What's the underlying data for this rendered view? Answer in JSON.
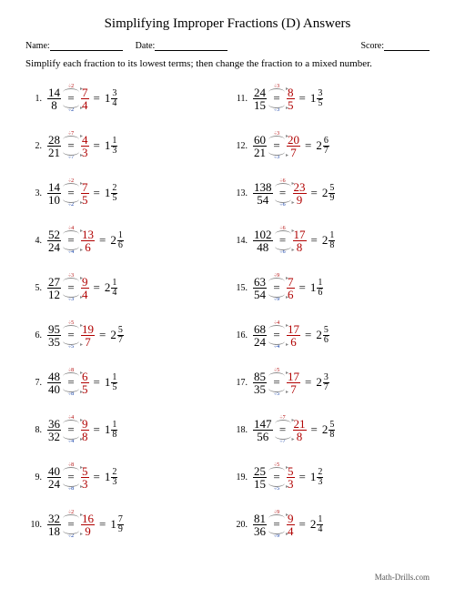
{
  "title": "Simplifying Improper Fractions (D) Answers",
  "name_label": "Name:",
  "date_label": "Date:",
  "score_label": "Score:",
  "instruction": "Simplify each fraction to its lowest terms; then change the fraction to a mixed number.",
  "footer": "Math-Drills.com",
  "colors": {
    "divisor_top": "#b00000",
    "divisor_bot": "#0030a0",
    "simplified": "#b00000",
    "text": "#000000",
    "bg": "#ffffff"
  },
  "problems": [
    {
      "n": "1.",
      "num": "14",
      "den": "8",
      "div": "2",
      "snum": "7",
      "sden": "4",
      "whole": "1",
      "mnum": "3",
      "mden": "4"
    },
    {
      "n": "2.",
      "num": "28",
      "den": "21",
      "div": "7",
      "snum": "4",
      "sden": "3",
      "whole": "1",
      "mnum": "1",
      "mden": "3"
    },
    {
      "n": "3.",
      "num": "14",
      "den": "10",
      "div": "2",
      "snum": "7",
      "sden": "5",
      "whole": "1",
      "mnum": "2",
      "mden": "5"
    },
    {
      "n": "4.",
      "num": "52",
      "den": "24",
      "div": "4",
      "snum": "13",
      "sden": "6",
      "whole": "2",
      "mnum": "1",
      "mden": "6"
    },
    {
      "n": "5.",
      "num": "27",
      "den": "12",
      "div": "3",
      "snum": "9",
      "sden": "4",
      "whole": "2",
      "mnum": "1",
      "mden": "4"
    },
    {
      "n": "6.",
      "num": "95",
      "den": "35",
      "div": "5",
      "snum": "19",
      "sden": "7",
      "whole": "2",
      "mnum": "5",
      "mden": "7"
    },
    {
      "n": "7.",
      "num": "48",
      "den": "40",
      "div": "8",
      "snum": "6",
      "sden": "5",
      "whole": "1",
      "mnum": "1",
      "mden": "5"
    },
    {
      "n": "8.",
      "num": "36",
      "den": "32",
      "div": "4",
      "snum": "9",
      "sden": "8",
      "whole": "1",
      "mnum": "1",
      "mden": "8"
    },
    {
      "n": "9.",
      "num": "40",
      "den": "24",
      "div": "8",
      "snum": "5",
      "sden": "3",
      "whole": "1",
      "mnum": "2",
      "mden": "3"
    },
    {
      "n": "10.",
      "num": "32",
      "den": "18",
      "div": "2",
      "snum": "16",
      "sden": "9",
      "whole": "1",
      "mnum": "7",
      "mden": "9"
    },
    {
      "n": "11.",
      "num": "24",
      "den": "15",
      "div": "3",
      "snum": "8",
      "sden": "5",
      "whole": "1",
      "mnum": "3",
      "mden": "5"
    },
    {
      "n": "12.",
      "num": "60",
      "den": "21",
      "div": "3",
      "snum": "20",
      "sden": "7",
      "whole": "2",
      "mnum": "6",
      "mden": "7"
    },
    {
      "n": "13.",
      "num": "138",
      "den": "54",
      "div": "6",
      "snum": "23",
      "sden": "9",
      "whole": "2",
      "mnum": "5",
      "mden": "9"
    },
    {
      "n": "14.",
      "num": "102",
      "den": "48",
      "div": "6",
      "snum": "17",
      "sden": "8",
      "whole": "2",
      "mnum": "1",
      "mden": "8"
    },
    {
      "n": "15.",
      "num": "63",
      "den": "54",
      "div": "9",
      "snum": "7",
      "sden": "6",
      "whole": "1",
      "mnum": "1",
      "mden": "6"
    },
    {
      "n": "16.",
      "num": "68",
      "den": "24",
      "div": "4",
      "snum": "17",
      "sden": "6",
      "whole": "2",
      "mnum": "5",
      "mden": "6"
    },
    {
      "n": "17.",
      "num": "85",
      "den": "35",
      "div": "5",
      "snum": "17",
      "sden": "7",
      "whole": "2",
      "mnum": "3",
      "mden": "7"
    },
    {
      "n": "18.",
      "num": "147",
      "den": "56",
      "div": "7",
      "snum": "21",
      "sden": "8",
      "whole": "2",
      "mnum": "5",
      "mden": "8"
    },
    {
      "n": "19.",
      "num": "25",
      "den": "15",
      "div": "5",
      "snum": "5",
      "sden": "3",
      "whole": "1",
      "mnum": "2",
      "mden": "3"
    },
    {
      "n": "20.",
      "num": "81",
      "den": "36",
      "div": "9",
      "snum": "9",
      "sden": "4",
      "whole": "2",
      "mnum": "1",
      "mden": "4"
    }
  ]
}
